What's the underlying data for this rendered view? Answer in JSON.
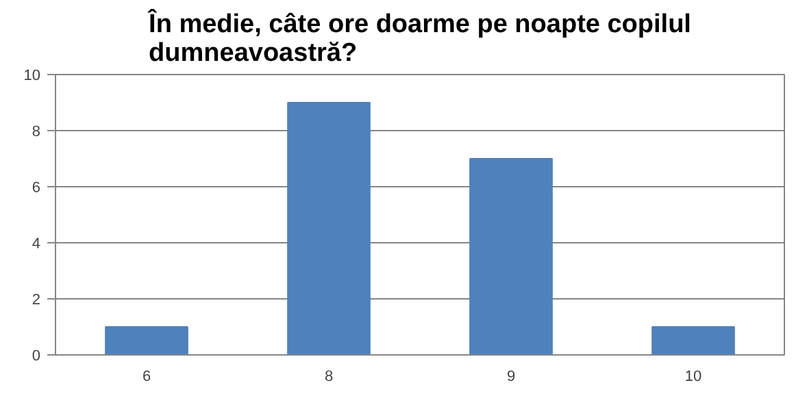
{
  "chart_data": {
    "type": "bar",
    "title": "În medie, câte ore doarme pe noapte copilul\ndumneavoastră?",
    "categories": [
      "6",
      "8",
      "9",
      "10"
    ],
    "values": [
      1,
      9,
      7,
      1
    ],
    "color": "#4f81bd",
    "ylim": [
      0,
      10
    ],
    "yticks": [
      0,
      2,
      4,
      6,
      8,
      10
    ],
    "grid": "y"
  }
}
